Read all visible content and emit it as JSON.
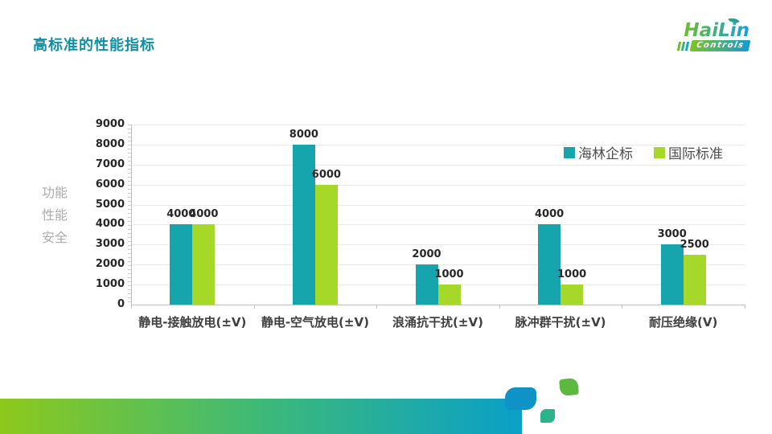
{
  "slide": {
    "title": "高标准的性能指标"
  },
  "logo": {
    "brand": "HaiLin",
    "sub": "Controls"
  },
  "chart_data": {
    "type": "bar",
    "title": "",
    "categories": [
      "静电-接触放电(±V)",
      "静电-空气放电(±V)",
      "浪涌抗干扰(±V)",
      "脉冲群干扰(±V)",
      "耐压绝缘(V)"
    ],
    "series": [
      {
        "name": "海林企标",
        "color": "#16A5AD",
        "values": [
          4000,
          8000,
          2000,
          4000,
          3000
        ]
      },
      {
        "name": "国际标准",
        "color": "#A5D828",
        "values": [
          4000,
          6000,
          1000,
          1000,
          2500
        ]
      }
    ],
    "ylim": [
      0,
      9000
    ],
    "ytick_step": 1000,
    "grid": true,
    "data_labels": true,
    "legend_position": "top-right",
    "left_axis_label_lines": [
      "功能",
      "性能",
      "安全"
    ]
  },
  "footer": {
    "gradient_start": "#8DC91C",
    "gradient_end": "#0AA0C8"
  }
}
